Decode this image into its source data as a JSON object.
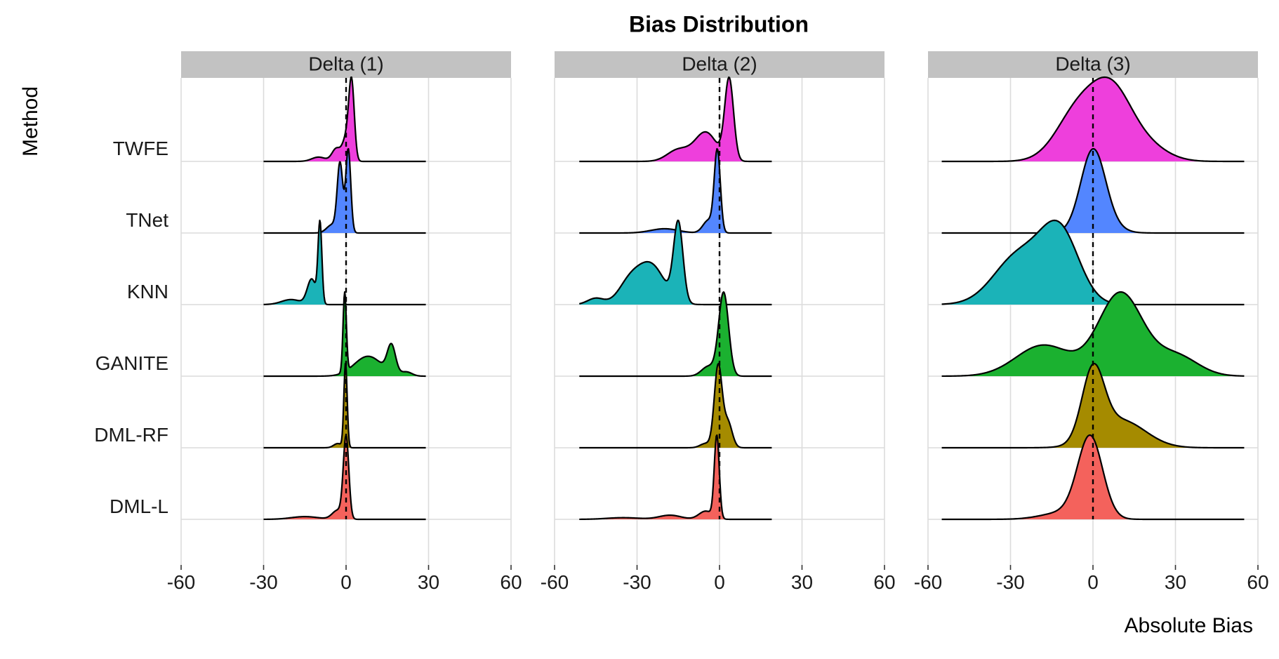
{
  "chart_data": {
    "type": "ridgeline",
    "title": "Bias Distribution",
    "xlabel": "Absolute Bias",
    "ylabel": "Method",
    "xlim": [
      -60,
      60
    ],
    "xticks": [
      -60,
      -30,
      0,
      30,
      60
    ],
    "xtick_labels": [
      "-60",
      "-30",
      "0",
      "30",
      "60"
    ],
    "reference_line_x": 0,
    "categories": [
      "TWFE",
      "TNet",
      "KNN",
      "GANITE",
      "DML-RF",
      "DML-L"
    ],
    "colors": {
      "TWFE": "#EE3FDC",
      "TNet": "#5386FF",
      "KNN": "#1BB3B8",
      "GANITE": "#1BB130",
      "DML-RF": "#A58B00",
      "DML-L": "#F4625C"
    },
    "grid": true,
    "facets": [
      {
        "label": "Delta (1)",
        "range": [
          -30,
          29
        ],
        "series": [
          {
            "name": "TWFE",
            "peaks": [
              [
                2,
                0.9,
                1.0
              ],
              [
                0,
                0.25,
                1.3
              ],
              [
                -3.5,
                0.15,
                1.6
              ],
              [
                -10,
                0.05,
                2.5
              ]
            ]
          },
          {
            "name": "TNet",
            "peaks": [
              [
                0.8,
                0.8,
                0.9
              ],
              [
                -2.2,
                0.65,
                1.0
              ],
              [
                -5,
                0.08,
                2
              ]
            ]
          },
          {
            "name": "KNN",
            "peaks": [
              [
                -9.5,
                0.95,
                0.7
              ],
              [
                -12.5,
                0.3,
                1.6
              ],
              [
                -20,
                0.06,
                3.5
              ]
            ]
          },
          {
            "name": "GANITE",
            "peaks": [
              [
                -0.5,
                1.0,
                0.6
              ],
              [
                16.5,
                0.35,
                1.5
              ],
              [
                8,
                0.25,
                5
              ],
              [
                22,
                0.05,
                2
              ]
            ]
          },
          {
            "name": "DML-RF",
            "peaks": [
              [
                -0.2,
                1.0,
                0.6
              ],
              [
                -3,
                0.05,
                1.5
              ]
            ]
          },
          {
            "name": "DML-L",
            "peaks": [
              [
                0,
                0.9,
                1.0
              ],
              [
                -3,
                0.1,
                2
              ],
              [
                -15,
                0.03,
                5
              ]
            ]
          }
        ]
      },
      {
        "label": "Delta (2)",
        "range": [
          -51,
          19
        ],
        "series": [
          {
            "name": "TWFE",
            "peaks": [
              [
                3.5,
                0.7,
                1.6
              ],
              [
                -5,
                0.25,
                4
              ],
              [
                -15,
                0.1,
                4
              ]
            ]
          },
          {
            "name": "TNet",
            "peaks": [
              [
                -0.8,
                0.95,
                1.1
              ],
              [
                -4,
                0.15,
                2
              ],
              [
                -20,
                0.05,
                5
              ]
            ]
          },
          {
            "name": "KNN",
            "peaks": [
              [
                -15,
                0.5,
                1.7
              ],
              [
                -25,
                0.25,
                5
              ],
              [
                -33,
                0.12,
                4
              ],
              [
                -45,
                0.04,
                3
              ]
            ]
          },
          {
            "name": "GANITE",
            "peaks": [
              [
                1.5,
                0.85,
                1.8
              ],
              [
                -4,
                0.1,
                2.5
              ]
            ]
          },
          {
            "name": "DML-RF",
            "peaks": [
              [
                -0.5,
                0.95,
                1.4
              ],
              [
                3,
                0.3,
                1.6
              ],
              [
                -5,
                0.05,
                2
              ]
            ]
          },
          {
            "name": "DML-L",
            "peaks": [
              [
                -1,
                1.0,
                0.9
              ],
              [
                -5,
                0.1,
                2.5
              ],
              [
                -18,
                0.05,
                4
              ],
              [
                -35,
                0.02,
                6
              ]
            ]
          }
        ]
      },
      {
        "label": "Delta (3)",
        "range": [
          -55,
          55
        ],
        "series": [
          {
            "name": "TWFE",
            "peaks": [
              [
                -5,
                0.45,
                8
              ],
              [
                7,
                0.5,
                7
              ],
              [
                18,
                0.15,
                8
              ]
            ]
          },
          {
            "name": "TNet",
            "peaks": [
              [
                0,
                0.88,
                4.5
              ],
              [
                6,
                0.05,
                5
              ]
            ]
          },
          {
            "name": "KNN",
            "peaks": [
              [
                -12,
                0.5,
                7
              ],
              [
                -27,
                0.35,
                9
              ]
            ]
          },
          {
            "name": "GANITE",
            "peaks": [
              [
                10,
                0.4,
                8
              ],
              [
                -18,
                0.15,
                10
              ],
              [
                30,
                0.1,
                8
              ]
            ]
          },
          {
            "name": "DML-RF",
            "peaks": [
              [
                0,
                0.75,
                4
              ],
              [
                10,
                0.3,
                9
              ]
            ]
          },
          {
            "name": "DML-L",
            "peaks": [
              [
                -1,
                0.78,
                4.5
              ],
              [
                -10,
                0.07,
                8
              ]
            ]
          }
        ]
      }
    ]
  }
}
